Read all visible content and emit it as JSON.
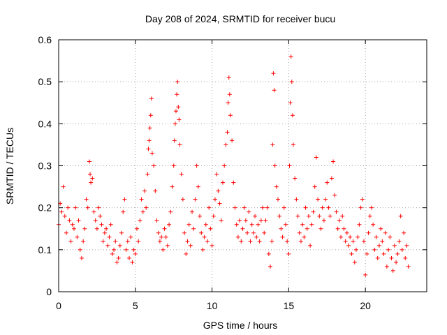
{
  "chart_data": {
    "type": "scatter",
    "title": "Day 208 of 2024, SRMTID for receiver bucu",
    "xlabel": "GPS time / hours",
    "ylabel": "SRMTID / TECUs",
    "xlim": [
      0,
      24
    ],
    "ylim": [
      0,
      0.6
    ],
    "xticks": [
      0,
      5,
      10,
      15,
      20
    ],
    "yticks": [
      0,
      0.1,
      0.2,
      0.3,
      0.4,
      0.5,
      0.6
    ],
    "xtick_labels": [
      "0",
      "5",
      "10",
      "15",
      "20"
    ],
    "ytick_labels": [
      "0",
      "0.1",
      "0.2",
      "0.3",
      "0.4",
      "0.5",
      "0.6"
    ],
    "marker": "+",
    "color": "#ff0000",
    "grid": true,
    "series": [
      {
        "name": "SRMTID",
        "points": [
          [
            0.0,
            0.16
          ],
          [
            0.1,
            0.21
          ],
          [
            0.2,
            0.19
          ],
          [
            0.3,
            0.25
          ],
          [
            0.4,
            0.18
          ],
          [
            0.5,
            0.14
          ],
          [
            0.6,
            0.2
          ],
          [
            0.7,
            0.17
          ],
          [
            0.8,
            0.12
          ],
          [
            0.9,
            0.16
          ],
          [
            1.0,
            0.15
          ],
          [
            1.1,
            0.2
          ],
          [
            1.2,
            0.13
          ],
          [
            1.3,
            0.17
          ],
          [
            1.4,
            0.1
          ],
          [
            1.5,
            0.08
          ],
          [
            1.6,
            0.12
          ],
          [
            1.7,
            0.15
          ],
          [
            1.8,
            0.22
          ],
          [
            1.9,
            0.2
          ],
          [
            2.0,
            0.31
          ],
          [
            2.05,
            0.28
          ],
          [
            2.1,
            0.26
          ],
          [
            2.2,
            0.27
          ],
          [
            2.3,
            0.19
          ],
          [
            2.4,
            0.17
          ],
          [
            2.5,
            0.15
          ],
          [
            2.6,
            0.2
          ],
          [
            2.7,
            0.18
          ],
          [
            2.8,
            0.16
          ],
          [
            2.9,
            0.12
          ],
          [
            3.0,
            0.14
          ],
          [
            3.1,
            0.15
          ],
          [
            3.2,
            0.11
          ],
          [
            3.3,
            0.13
          ],
          [
            3.4,
            0.16
          ],
          [
            3.5,
            0.09
          ],
          [
            3.6,
            0.1
          ],
          [
            3.7,
            0.12
          ],
          [
            3.8,
            0.07
          ],
          [
            3.9,
            0.08
          ],
          [
            4.0,
            0.11
          ],
          [
            4.1,
            0.14
          ],
          [
            4.2,
            0.19
          ],
          [
            4.3,
            0.22
          ],
          [
            4.4,
            0.1
          ],
          [
            4.5,
            0.12
          ],
          [
            4.6,
            0.08
          ],
          [
            4.7,
            0.13
          ],
          [
            4.8,
            0.07
          ],
          [
            4.9,
            0.1
          ],
          [
            5.0,
            0.09
          ],
          [
            5.1,
            0.15
          ],
          [
            5.2,
            0.12
          ],
          [
            5.3,
            0.17
          ],
          [
            5.4,
            0.22
          ],
          [
            5.5,
            0.19
          ],
          [
            5.6,
            0.24
          ],
          [
            5.7,
            0.2
          ],
          [
            5.8,
            0.28
          ],
          [
            5.85,
            0.34
          ],
          [
            5.9,
            0.36
          ],
          [
            5.95,
            0.39
          ],
          [
            6.0,
            0.42
          ],
          [
            6.05,
            0.46
          ],
          [
            6.1,
            0.33
          ],
          [
            6.2,
            0.3
          ],
          [
            6.3,
            0.24
          ],
          [
            6.4,
            0.17
          ],
          [
            6.5,
            0.14
          ],
          [
            6.6,
            0.12
          ],
          [
            6.7,
            0.13
          ],
          [
            6.8,
            0.1
          ],
          [
            6.9,
            0.15
          ],
          [
            7.0,
            0.13
          ],
          [
            7.1,
            0.11
          ],
          [
            7.2,
            0.16
          ],
          [
            7.3,
            0.19
          ],
          [
            7.4,
            0.25
          ],
          [
            7.5,
            0.3
          ],
          [
            7.55,
            0.36
          ],
          [
            7.6,
            0.4
          ],
          [
            7.65,
            0.43
          ],
          [
            7.7,
            0.47
          ],
          [
            7.75,
            0.5
          ],
          [
            7.8,
            0.44
          ],
          [
            7.85,
            0.41
          ],
          [
            7.9,
            0.35
          ],
          [
            8.0,
            0.28
          ],
          [
            8.1,
            0.22
          ],
          [
            8.2,
            0.14
          ],
          [
            8.3,
            0.09
          ],
          [
            8.4,
            0.12
          ],
          [
            8.5,
            0.16
          ],
          [
            8.6,
            0.11
          ],
          [
            8.7,
            0.19
          ],
          [
            8.8,
            0.15
          ],
          [
            8.9,
            0.22
          ],
          [
            9.0,
            0.3
          ],
          [
            9.1,
            0.25
          ],
          [
            9.2,
            0.18
          ],
          [
            9.3,
            0.14
          ],
          [
            9.4,
            0.1
          ],
          [
            9.5,
            0.13
          ],
          [
            9.6,
            0.16
          ],
          [
            9.7,
            0.12
          ],
          [
            9.8,
            0.2
          ],
          [
            9.9,
            0.15
          ],
          [
            10.0,
            0.11
          ],
          [
            10.1,
            0.18
          ],
          [
            10.2,
            0.22
          ],
          [
            10.3,
            0.28
          ],
          [
            10.4,
            0.24
          ],
          [
            10.5,
            0.21
          ],
          [
            10.6,
            0.17
          ],
          [
            10.7,
            0.26
          ],
          [
            10.8,
            0.3
          ],
          [
            10.9,
            0.35
          ],
          [
            11.0,
            0.38
          ],
          [
            11.05,
            0.45
          ],
          [
            11.1,
            0.51
          ],
          [
            11.15,
            0.47
          ],
          [
            11.2,
            0.42
          ],
          [
            11.3,
            0.36
          ],
          [
            11.4,
            0.26
          ],
          [
            11.5,
            0.2
          ],
          [
            11.6,
            0.16
          ],
          [
            11.7,
            0.13
          ],
          [
            11.8,
            0.17
          ],
          [
            11.9,
            0.12
          ],
          [
            12.0,
            0.15
          ],
          [
            12.1,
            0.2
          ],
          [
            12.2,
            0.17
          ],
          [
            12.3,
            0.14
          ],
          [
            12.4,
            0.19
          ],
          [
            12.5,
            0.12
          ],
          [
            12.6,
            0.16
          ],
          [
            12.7,
            0.14
          ],
          [
            12.8,
            0.18
          ],
          [
            12.9,
            0.13
          ],
          [
            13.0,
            0.16
          ],
          [
            13.1,
            0.12
          ],
          [
            13.2,
            0.17
          ],
          [
            13.3,
            0.2
          ],
          [
            13.4,
            0.14
          ],
          [
            13.5,
            0.17
          ],
          [
            13.6,
            0.2
          ],
          [
            13.7,
            0.09
          ],
          [
            13.8,
            0.06
          ],
          [
            13.9,
            0.12
          ],
          [
            13.95,
            0.35
          ],
          [
            14.0,
            0.52
          ],
          [
            14.05,
            0.48
          ],
          [
            14.1,
            0.3
          ],
          [
            14.2,
            0.25
          ],
          [
            14.3,
            0.22
          ],
          [
            14.4,
            0.18
          ],
          [
            14.5,
            0.15
          ],
          [
            14.6,
            0.13
          ],
          [
            14.7,
            0.2
          ],
          [
            14.8,
            0.16
          ],
          [
            14.9,
            0.12
          ],
          [
            15.0,
            0.09
          ],
          [
            15.05,
            0.3
          ],
          [
            15.1,
            0.45
          ],
          [
            15.15,
            0.56
          ],
          [
            15.2,
            0.5
          ],
          [
            15.25,
            0.42
          ],
          [
            15.3,
            0.35
          ],
          [
            15.4,
            0.27
          ],
          [
            15.5,
            0.22
          ],
          [
            15.6,
            0.18
          ],
          [
            15.7,
            0.14
          ],
          [
            15.8,
            0.12
          ],
          [
            15.9,
            0.16
          ],
          [
            16.0,
            0.13
          ],
          [
            16.1,
            0.2
          ],
          [
            16.2,
            0.15
          ],
          [
            16.3,
            0.18
          ],
          [
            16.4,
            0.11
          ],
          [
            16.5,
            0.16
          ],
          [
            16.6,
            0.19
          ],
          [
            16.7,
            0.25
          ],
          [
            16.8,
            0.32
          ],
          [
            16.9,
            0.22
          ],
          [
            17.0,
            0.18
          ],
          [
            17.1,
            0.15
          ],
          [
            17.2,
            0.2
          ],
          [
            17.3,
            0.17
          ],
          [
            17.4,
            0.22
          ],
          [
            17.5,
            0.26
          ],
          [
            17.6,
            0.2
          ],
          [
            17.7,
            0.18
          ],
          [
            17.8,
            0.27
          ],
          [
            17.9,
            0.31
          ],
          [
            18.0,
            0.23
          ],
          [
            18.1,
            0.19
          ],
          [
            18.2,
            0.15
          ],
          [
            18.3,
            0.17
          ],
          [
            18.4,
            0.13
          ],
          [
            18.5,
            0.18
          ],
          [
            18.6,
            0.15
          ],
          [
            18.7,
            0.12
          ],
          [
            18.8,
            0.14
          ],
          [
            18.9,
            0.11
          ],
          [
            19.0,
            0.13
          ],
          [
            19.1,
            0.09
          ],
          [
            19.2,
            0.12
          ],
          [
            19.3,
            0.07
          ],
          [
            19.4,
            0.1
          ],
          [
            19.5,
            0.13
          ],
          [
            19.6,
            0.16
          ],
          [
            19.7,
            0.2
          ],
          [
            19.8,
            0.22
          ],
          [
            19.9,
            0.12
          ],
          [
            20.0,
            0.04
          ],
          [
            20.1,
            0.09
          ],
          [
            20.2,
            0.14
          ],
          [
            20.3,
            0.18
          ],
          [
            20.4,
            0.2
          ],
          [
            20.5,
            0.16
          ],
          [
            20.6,
            0.1
          ],
          [
            20.7,
            0.13
          ],
          [
            20.8,
            0.08
          ],
          [
            20.9,
            0.11
          ],
          [
            21.0,
            0.15
          ],
          [
            21.1,
            0.12
          ],
          [
            21.2,
            0.09
          ],
          [
            21.3,
            0.14
          ],
          [
            21.4,
            0.06
          ],
          [
            21.5,
            0.1
          ],
          [
            21.6,
            0.13
          ],
          [
            21.7,
            0.08
          ],
          [
            21.8,
            0.05
          ],
          [
            21.9,
            0.11
          ],
          [
            22.0,
            0.07
          ],
          [
            22.1,
            0.09
          ],
          [
            22.2,
            0.12
          ],
          [
            22.3,
            0.18
          ],
          [
            22.4,
            0.1
          ],
          [
            22.5,
            0.14
          ],
          [
            22.6,
            0.08
          ],
          [
            22.7,
            0.11
          ],
          [
            22.8,
            0.06
          ]
        ]
      }
    ]
  }
}
